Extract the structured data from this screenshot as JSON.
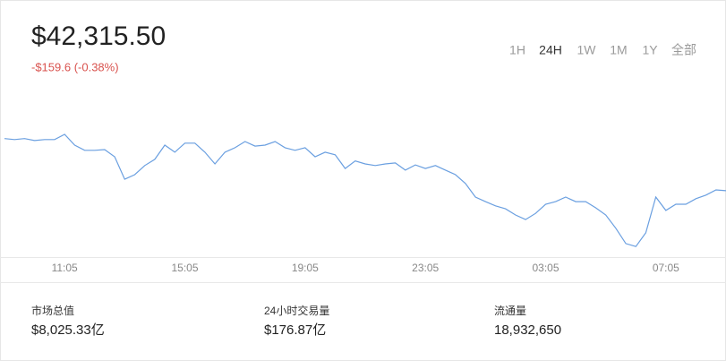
{
  "header": {
    "price": "$42,315.50",
    "change": "-$159.6 (-0.38%)",
    "ranges": [
      "1H",
      "24H",
      "1W",
      "1M",
      "1Y",
      "全部"
    ],
    "active_range": 1
  },
  "chart_data": {
    "type": "line",
    "categories": [
      null,
      null,
      null,
      null,
      null,
      null,
      "11:05",
      null,
      null,
      null,
      null,
      null,
      null,
      null,
      null,
      null,
      null,
      null,
      "15:05",
      null,
      null,
      null,
      null,
      null,
      null,
      null,
      null,
      null,
      null,
      null,
      "19:05",
      null,
      null,
      null,
      null,
      null,
      null,
      null,
      null,
      null,
      null,
      null,
      "23:05",
      null,
      null,
      null,
      null,
      null,
      null,
      null,
      null,
      null,
      null,
      null,
      "03:05",
      null,
      null,
      null,
      null,
      null,
      null,
      null,
      null,
      null,
      null,
      null,
      "07:05",
      null,
      null,
      null,
      null,
      null,
      null
    ],
    "values": [
      42476,
      42473,
      42476,
      42470,
      42473,
      42473,
      42489,
      42456,
      42440,
      42440,
      42442,
      42420,
      42351,
      42365,
      42393,
      42412,
      42456,
      42434,
      42462,
      42462,
      42434,
      42398,
      42434,
      42448,
      42467,
      42453,
      42456,
      42467,
      42448,
      42440,
      42448,
      42420,
      42434,
      42426,
      42384,
      42407,
      42398,
      42393,
      42398,
      42401,
      42379,
      42395,
      42384,
      42393,
      42379,
      42365,
      42338,
      42296,
      42282,
      42269,
      42260,
      42241,
      42227,
      42246,
      42274,
      42282,
      42296,
      42282,
      42282,
      42263,
      42241,
      42200,
      42153,
      42144,
      42186,
      42296,
      42255,
      42274,
      42274,
      42291,
      42302,
      42318,
      42315.5
    ],
    "color": "#6a9fe0",
    "ylim": [
      42110,
      42500
    ]
  },
  "stats": [
    {
      "label": "市场总值",
      "value": "$8,025.33亿"
    },
    {
      "label": "24小时交易量",
      "value": "$176.87亿"
    },
    {
      "label": "流通量",
      "value": "18,932,650"
    }
  ]
}
